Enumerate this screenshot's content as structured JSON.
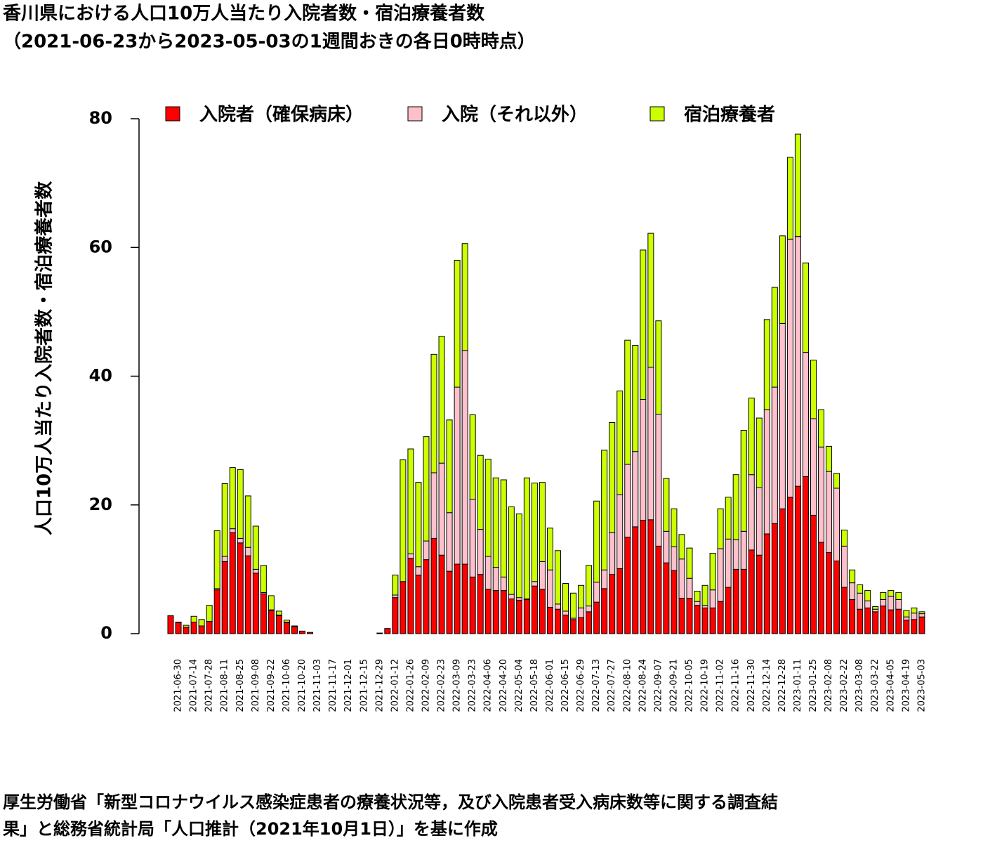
{
  "chart_data": {
    "type": "stacked_bar",
    "title": [
      "香川県における人口10万人当たり入院者数・宿泊療養者数",
      "（2021-06-23から2023-05-03の1週間おきの各日0時時点）"
    ],
    "y_label": "人口10万人当たり入院者数・宿泊療養者数",
    "source": [
      "厚生労働省「新型コロナウイルス感染症患者の療養状況等，及び入院患者受入病床数等に関する調査結",
      "果」と総務省統計局「人口推計（2021年10月1日）」を基に作成"
    ],
    "categories": [
      null,
      "2021-06-30",
      null,
      "2021-07-14",
      null,
      "2021-07-28",
      null,
      "2021-08-11",
      null,
      "2021-08-25",
      null,
      "2021-09-08",
      null,
      "2021-09-22",
      null,
      "2021-10-06",
      null,
      "2021-10-20",
      null,
      "2021-11-03",
      null,
      "2021-11-17",
      null,
      "2021-12-01",
      null,
      "2021-12-15",
      null,
      "2021-12-29",
      null,
      "2022-01-12",
      null,
      "2022-01-26",
      null,
      "2022-02-09",
      null,
      "2022-02-23",
      null,
      "2022-03-09",
      null,
      "2022-03-23",
      null,
      "2022-04-06",
      null,
      "2022-04-20",
      null,
      "2022-05-04",
      null,
      "2022-05-18",
      null,
      "2022-06-01",
      null,
      "2022-06-15",
      null,
      "2022-06-29",
      null,
      "2022-07-13",
      null,
      "2022-07-27",
      null,
      "2022-08-10",
      null,
      "2022-08-24",
      null,
      "2022-09-07",
      null,
      "2022-09-21",
      null,
      "2022-10-05",
      null,
      "2022-10-19",
      null,
      "2022-11-02",
      null,
      "2022-11-16",
      null,
      "2022-11-30",
      null,
      "2022-12-14",
      null,
      "2022-12-28",
      null,
      "2023-01-11",
      null,
      "2023-01-25",
      null,
      "2023-02-08",
      null,
      "2023-02-22",
      null,
      "2023-03-08",
      null,
      "2023-03-22",
      null,
      "2023-04-05",
      null,
      "2023-04-19",
      null,
      "2023-05-03"
    ],
    "series": [
      {
        "name": "入院者（確保病床）",
        "color": "#ff0000",
        "values": [
          2.8,
          1.7,
          1.0,
          1.8,
          1.2,
          1.9,
          6.8,
          11.2,
          15.7,
          14.1,
          12.1,
          9.4,
          6.2,
          3.6,
          2.8,
          1.7,
          1.1,
          0.4,
          0.2,
          0,
          0,
          0,
          0,
          0,
          0,
          0,
          0,
          0.1,
          0.8,
          5.6,
          8.1,
          11.7,
          9.1,
          11.5,
          14.8,
          12.2,
          9.7,
          10.8,
          10.8,
          8.8,
          9.2,
          6.9,
          6.7,
          6.7,
          5.4,
          5.2,
          5.3,
          7.4,
          6.9,
          4.1,
          3.8,
          2.9,
          2.2,
          2.5,
          3.4,
          4.9,
          7.0,
          9.2,
          10.1,
          15.0,
          16.6,
          17.6,
          17.7,
          13.6,
          11.0,
          9.8,
          5.5,
          5.5,
          4.4,
          4.0,
          4.0,
          5.0,
          7.2,
          10.0,
          10.0,
          13.0,
          12.2,
          15.5,
          17.1,
          19.4,
          21.2,
          22.9,
          24.4,
          18.4,
          14.2,
          12.6,
          11.3,
          7.2,
          5.3,
          3.8,
          4.0,
          3.4,
          4.3,
          3.7,
          3.8,
          2.1,
          2.2,
          2.6
        ]
      },
      {
        "name": "入院（それ以外）",
        "color": "#ffc0cb",
        "values": [
          0,
          0,
          0,
          0,
          0,
          0,
          0.2,
          0.8,
          0.6,
          0.7,
          1.3,
          0.6,
          0.2,
          0.1,
          0.1,
          0.1,
          0,
          0,
          0,
          0,
          0,
          0,
          0,
          0,
          0,
          0,
          0,
          0,
          0,
          0.4,
          0,
          0.7,
          1.3,
          2.9,
          10.2,
          14.3,
          9.1,
          27.5,
          33.2,
          12.1,
          7.0,
          5.1,
          3.6,
          2.1,
          0.7,
          0.4,
          0.1,
          0.7,
          4.3,
          5.8,
          0.8,
          0.6,
          0.2,
          1.5,
          0.9,
          3.1,
          2.9,
          6.5,
          11.5,
          11.3,
          11.7,
          18.8,
          23.7,
          20.5,
          4.9,
          3.7,
          6.1,
          3.1,
          0.6,
          0.4,
          2.8,
          8.2,
          7.5,
          4.6,
          5.9,
          11.7,
          10.5,
          19.3,
          21.2,
          28.8,
          40.1,
          38.8,
          19.3,
          15.0,
          14.8,
          12.6,
          11.3,
          6.4,
          2.6,
          2.5,
          1.1,
          0.4,
          1.0,
          2.1,
          1.5,
          0.5,
          1.0,
          0.5
        ]
      },
      {
        "name": "宿泊療養者",
        "color": "#ccff00",
        "values": [
          0,
          0.1,
          0.3,
          0.9,
          1.0,
          2.5,
          9.0,
          11.3,
          9.5,
          10.7,
          8.0,
          6.7,
          4.2,
          2.2,
          0.6,
          0.3,
          0.1,
          0,
          0,
          0,
          0,
          0,
          0,
          0,
          0,
          0,
          0,
          0,
          0,
          3.1,
          18.9,
          16.3,
          13.1,
          16.2,
          18.4,
          19.7,
          14.4,
          19.7,
          16.6,
          13.1,
          11.5,
          15.1,
          13.9,
          15.1,
          13.6,
          13.0,
          18.8,
          15.3,
          12.3,
          6.5,
          8.3,
          4.3,
          3.9,
          3.5,
          6.3,
          12.6,
          18.6,
          17.1,
          16.1,
          19.3,
          16.5,
          23.2,
          20.8,
          14.5,
          8.2,
          5.9,
          3.8,
          4.7,
          1.6,
          3.1,
          5.7,
          6.2,
          6.5,
          10.1,
          15.7,
          11.9,
          10.8,
          14.0,
          15.5,
          13.6,
          12.7,
          15.9,
          13.9,
          9.1,
          5.8,
          3.9,
          2.3,
          2.5,
          2.0,
          1.3,
          1.6,
          0.4,
          1.1,
          0.9,
          1.1,
          1.0,
          0.8,
          0.3
        ]
      }
    ],
    "ylim": [
      0,
      80
    ],
    "yticks": [
      0,
      20,
      40,
      60,
      80
    ],
    "grid": false
  }
}
